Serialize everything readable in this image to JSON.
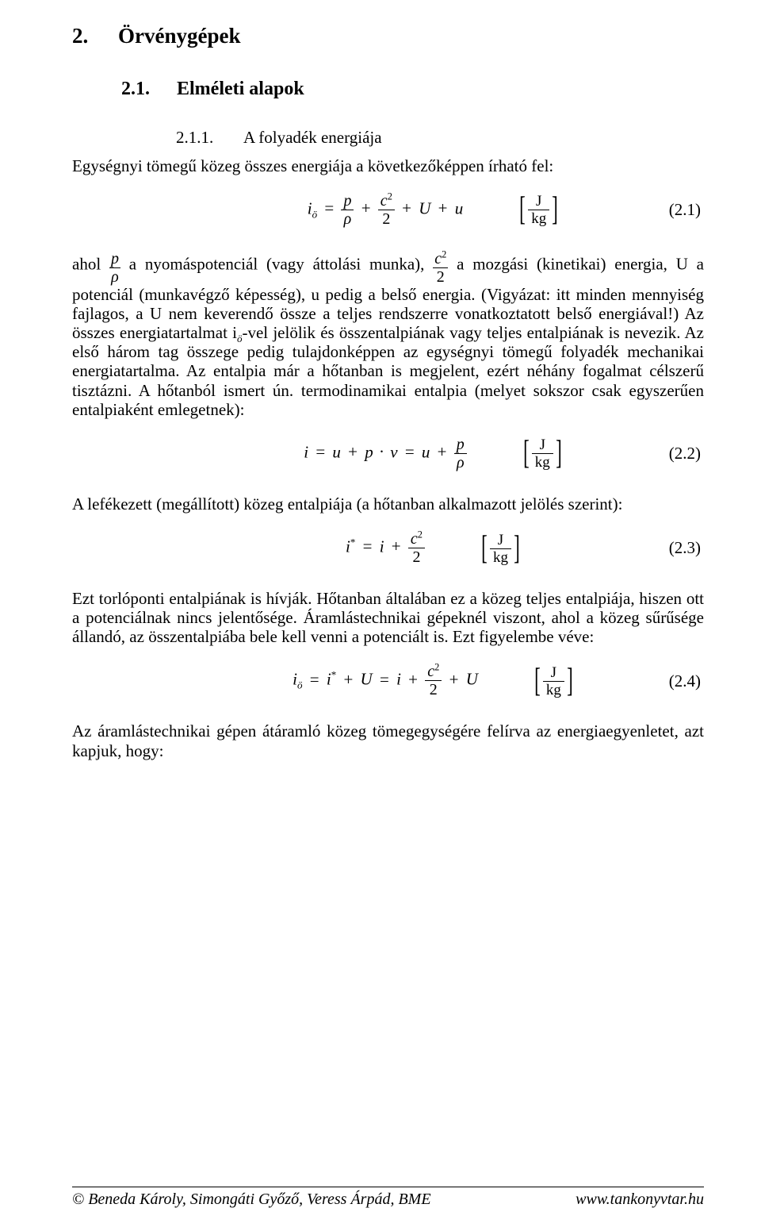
{
  "section": {
    "num": "2.",
    "title": "Örvénygépek"
  },
  "subsection": {
    "num": "2.1.",
    "title": "Elméleti alapok"
  },
  "subsubsection": {
    "num": "2.1.1.",
    "title": "A folyadék energiája"
  },
  "intro_2_1_1": "Egységnyi tömegű közeg összes energiája a következőképpen írható fel:",
  "eq21": {
    "lhs": "i",
    "lhs_sub": "ö",
    "op_eq": "=",
    "t1_num": "p",
    "t1_den": "ρ",
    "plus": "+",
    "t2_num": "c",
    "t2_num_sup": "2",
    "t2_den": "2",
    "t3": "U",
    "t4": "u",
    "tag": "(2.1)"
  },
  "para_after_21_a": "ahol ",
  "para_after_21_b": " a nyomáspotenciál (vagy áttolási munka), ",
  "para_after_21_c": " a mozgási (kinetikai) energia, U a potenciál (munkavégző képesség), u pedig a belső energia. (Vigyázat: itt minden mennyiség fajlagos, a U nem keverendő össze a teljes rendszerre vonatkoztatott belső energiával!) Az összes energiatartalmat i",
  "para_after_21_c_sub": "ö",
  "para_after_21_d": "-vel jelölik és összentalpiának vagy teljes entalpiának is nevezik. Az első három tag összege pedig tulajdonképpen az egységnyi tömegű folyadék mechanikai energiatartalma. Az entalpia már a hőtanban is megjelent, ezért néhány fogalmat célszerű tisztázni. A hőtanból ismert ún. termodinamikai entalpia (melyet sokszor csak egyszerűen entalpiaként emlegetnek):",
  "eq22": {
    "lhs": "i",
    "op_eq": "=",
    "t1": "u",
    "plus": "+",
    "t2a": "p",
    "dot": "·",
    "t2b": "v",
    "eq2": "=",
    "t3": "u",
    "t4_num": "p",
    "t4_den": "ρ",
    "tag": "(2.2)"
  },
  "para_before_23": "A lefékezett (megállított) közeg entalpiája (a hőtanban alkalmazott jelölés szerint):",
  "eq23": {
    "lhs": "i",
    "lhs_sup": "*",
    "op_eq": "=",
    "t1": "i",
    "plus": "+",
    "t2_num": "c",
    "t2_num_sup": "2",
    "t2_den": "2",
    "tag": "(2.3)"
  },
  "para_before_24": "Ezt torlóponti entalpiának is hívják. Hőtanban általában ez a közeg teljes entalpiája, hiszen ott a potenciálnak nincs jelentősége. Áramlástechnikai gépeknél viszont, ahol a közeg sűrűsége állandó, az összentalpiába bele kell venni a potenciált is. Ezt figyelembe véve:",
  "eq24": {
    "lhs": "i",
    "lhs_sub": "ö",
    "op_eq": "=",
    "t1": "i",
    "t1_sup": "*",
    "plus": "+",
    "t2": "U",
    "eq2": "=",
    "t3": "i",
    "t4_num": "c",
    "t4_num_sup": "2",
    "t4_den": "2",
    "t5": "U",
    "tag": "(2.4)"
  },
  "para_after_24": "Az áramlástechnikai gépen átáramló közeg tömegegységére felírva az energiaegyenletet, azt kapjuk, hogy:",
  "unit": {
    "num": "J",
    "den": "kg"
  },
  "footer": {
    "left_prefix": "© ",
    "left": "Beneda Károly, Simongáti Győző, Veress Árpád, BME",
    "right": "www.tankonyvtar.hu"
  }
}
